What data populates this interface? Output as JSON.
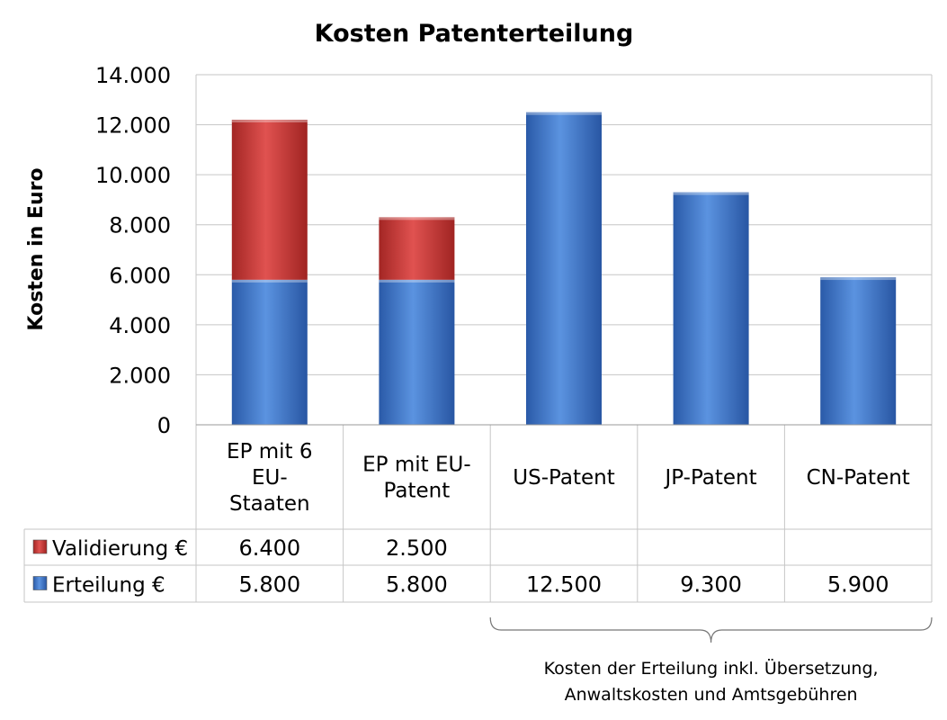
{
  "chart_data": {
    "type": "bar",
    "stacked": true,
    "title": "Kosten Patenterteilung",
    "ylabel": "Kosten in Euro",
    "xlabel": "",
    "ylim": [
      0,
      14000
    ],
    "yticks": [
      0,
      2000,
      4000,
      6000,
      8000,
      10000,
      12000,
      14000
    ],
    "ytick_labels": [
      "0",
      "2.000",
      "4.000",
      "6.000",
      "8.000",
      "10.000",
      "12.000",
      "14.000"
    ],
    "grid": true,
    "legend_placement": "data-table",
    "categories": [
      [
        "EP mit 6",
        "EU-",
        "Staaten"
      ],
      [
        "EP mit EU-",
        "Patent"
      ],
      [
        "US-Patent"
      ],
      [
        "JP-Patent"
      ],
      [
        "CN-Patent"
      ]
    ],
    "series": [
      {
        "name": "Erteilung €",
        "color": "#3a73c6",
        "values": [
          5800,
          5800,
          12500,
          9300,
          5900
        ],
        "labels": [
          "5.800",
          "5.800",
          "12.500",
          "9.300",
          "5.900"
        ]
      },
      {
        "name": "Validierung €",
        "color": "#c83432",
        "values": [
          6400,
          2500,
          null,
          null,
          null
        ],
        "labels": [
          "6.400",
          "2.500",
          "",
          "",
          ""
        ]
      }
    ],
    "annotation": {
      "lines": [
        "Kosten der Erteilung inkl. Übersetzung,",
        "Anwaltskosten und Amtsgebühren"
      ],
      "spans_categories": [
        "US-Patent",
        "JP-Patent",
        "CN-Patent"
      ]
    }
  }
}
